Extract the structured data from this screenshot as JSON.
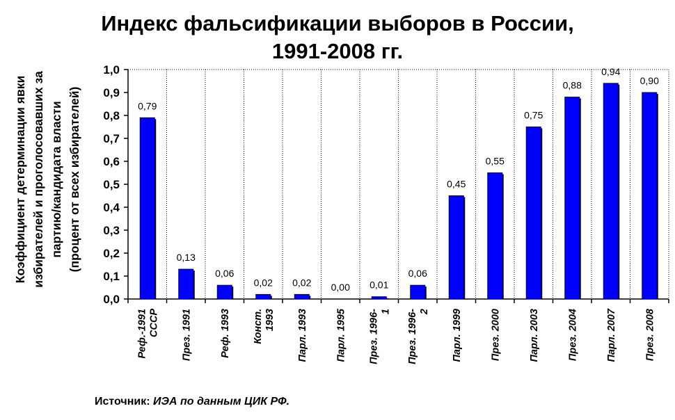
{
  "title": {
    "line1": "Индекс фальсификации выборов в России,",
    "line2": "1991-2008 гг."
  },
  "ylabel": {
    "line1": "Коэффициент детерминации явки",
    "line2": "избирателей и проголосовавших за",
    "line3": "партию/кандидата власти",
    "line4": "(процент от всех избирателей)"
  },
  "source": {
    "prefix": "Источник:",
    "text": "ИЭА по данным ЦИК РФ."
  },
  "chart_data": {
    "type": "bar",
    "categories": [
      [
        "Реф.-1991",
        "СССР"
      ],
      [
        "През. 1991"
      ],
      [
        "Реф. 1993"
      ],
      [
        "Конст.",
        "1993"
      ],
      [
        "Парл. 1993"
      ],
      [
        "Парл. 1995"
      ],
      [
        "През. 1996-",
        "1"
      ],
      [
        "През. 1996-",
        "2"
      ],
      [
        "Парл. 1999"
      ],
      [
        "През. 2000"
      ],
      [
        "Парл. 2003"
      ],
      [
        "През. 2004"
      ],
      [
        "Парл. 2007"
      ],
      [
        "През. 2008"
      ]
    ],
    "values": [
      0.79,
      0.13,
      0.06,
      0.02,
      0.02,
      0.0,
      0.01,
      0.06,
      0.45,
      0.55,
      0.75,
      0.88,
      0.94,
      0.9
    ],
    "value_labels": [
      "0,79",
      "0,13",
      "0,06",
      "0,02",
      "0,02",
      "0,00",
      "0,01",
      "0,06",
      "0,45",
      "0,55",
      "0,75",
      "0,88",
      "0,94",
      "0,90"
    ],
    "yticks": [
      0.0,
      0.1,
      0.2,
      0.3,
      0.4,
      0.5,
      0.6,
      0.7,
      0.8,
      0.9,
      1.0
    ],
    "ytick_labels": [
      "0,0",
      "0,1",
      "0,2",
      "0,3",
      "0,4",
      "0,5",
      "0,6",
      "0,7",
      "0,8",
      "0,9",
      "1,0"
    ],
    "ylim": [
      0,
      1
    ],
    "grid": "vertical dotted lines between categories",
    "bar_color": "#0000ff",
    "bar_edge_color": "#000080"
  }
}
